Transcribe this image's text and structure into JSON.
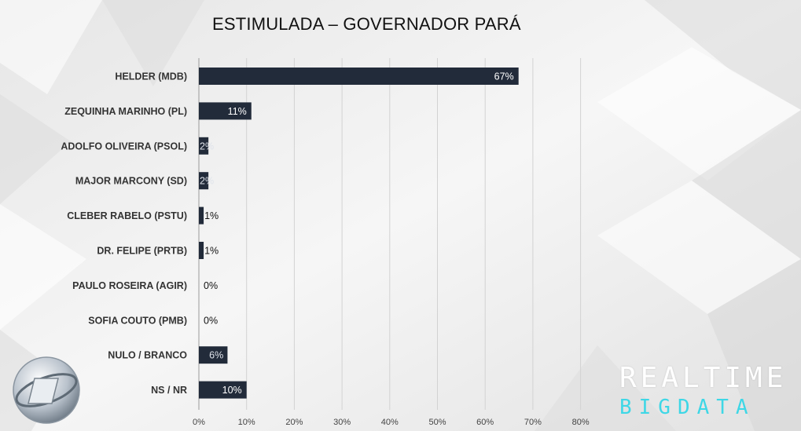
{
  "chart_data": {
    "type": "bar",
    "orientation": "horizontal",
    "title": "ESTIMULADA – GOVERNADOR PARÁ",
    "categories": [
      "HELDER (MDB)",
      "ZEQUINHA MARINHO (PL)",
      "ADOLFO OLIVEIRA (PSOL)",
      "MAJOR MARCONY (SD)",
      "CLEBER RABELO (PSTU)",
      "DR. FELIPE (PRTB)",
      "PAULO ROSEIRA (AGIR)",
      "SOFIA COUTO (PMB)",
      "NULO / BRANCO",
      "NS / NR"
    ],
    "values": [
      67,
      11,
      2,
      2,
      1,
      1,
      0,
      0,
      6,
      10
    ],
    "value_labels": [
      "67%",
      "11%",
      "2%",
      "2%",
      "1%",
      "1%",
      "0%",
      "0%",
      "6%",
      "10%"
    ],
    "xlim": [
      0,
      80
    ],
    "x_ticks": [
      "0%",
      "10%",
      "20%",
      "30%",
      "40%",
      "50%",
      "60%",
      "70%",
      "80%"
    ],
    "xlabel": "",
    "ylabel": "",
    "grid": true,
    "bar_color": "#222b3a"
  },
  "brand": {
    "line1": "REALTIME",
    "line2": "BIGDATA",
    "line1_color": "#ffffff",
    "line2_color": "#3ed7e6"
  },
  "logo": {
    "icon": "record-tv-sphere-logo"
  }
}
